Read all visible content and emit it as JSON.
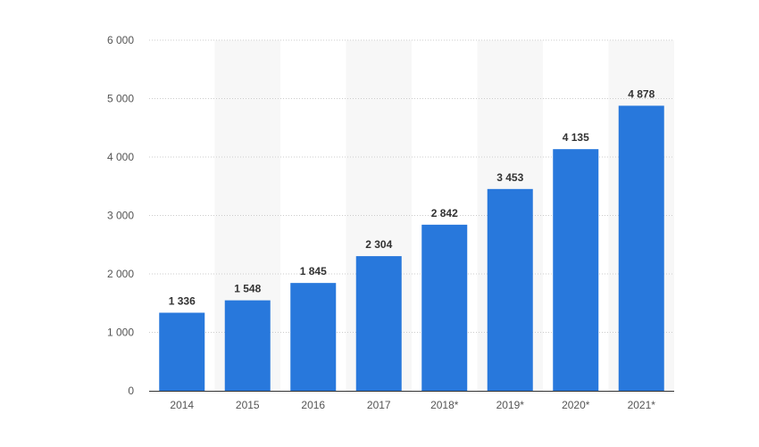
{
  "chart_data": {
    "type": "bar",
    "categories": [
      "2014",
      "2015",
      "2016",
      "2017",
      "2018*",
      "2019*",
      "2020*",
      "2021*"
    ],
    "values": [
      1336,
      1548,
      1845,
      2304,
      2842,
      3453,
      4135,
      4878
    ],
    "value_labels": [
      "1 336",
      "1 548",
      "1 845",
      "2 304",
      "2 842",
      "3 453",
      "4 135",
      "4 878"
    ],
    "y_ticks": [
      0,
      1000,
      2000,
      3000,
      4000,
      5000,
      6000
    ],
    "y_tick_labels": [
      "0",
      "1 000",
      "2 000",
      "3 000",
      "4 000",
      "5 000",
      "6 000"
    ],
    "ylim": [
      0,
      6000
    ],
    "title": "",
    "xlabel": "",
    "ylabel": "",
    "grid": "horizontal dotted",
    "legend": "none",
    "bar_color": "#2878dc",
    "band_color": "#f7f7f7",
    "axis_color": "#333333",
    "grid_color": "#cccccc"
  }
}
